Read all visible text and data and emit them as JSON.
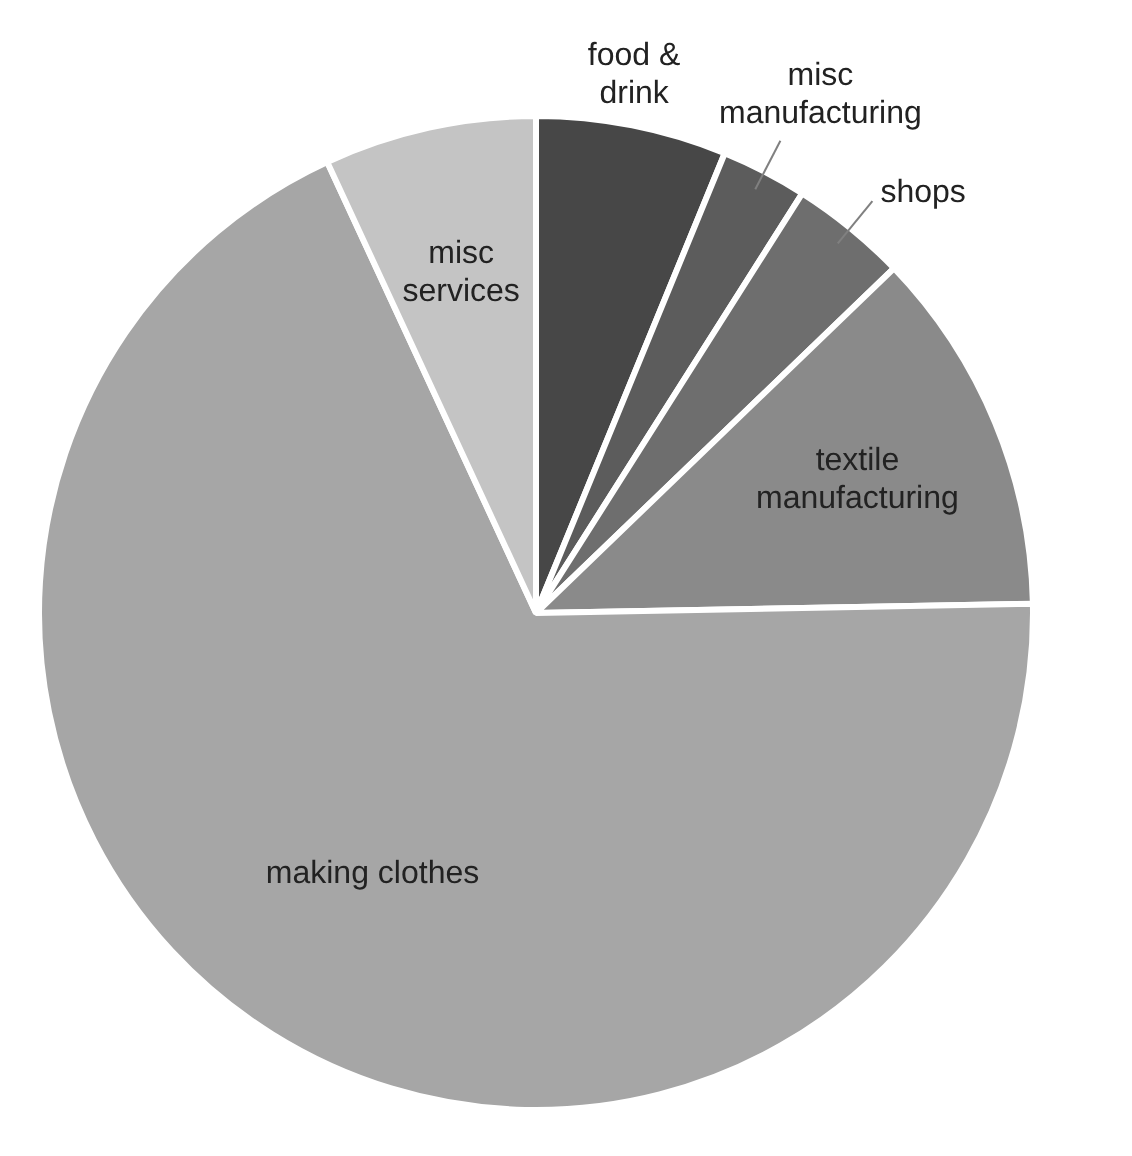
{
  "chart_data": {
    "type": "pie",
    "categories": [
      "food & drink",
      "misc manufacturing",
      "shops",
      "textile manufacturing",
      "making clothes",
      "misc services"
    ],
    "values": [
      6.2,
      2.8,
      3.8,
      11.9,
      68.4,
      6.9
    ],
    "colors": [
      "#474747",
      "#5c5c5c",
      "#6e6e6e",
      "#8a8a8a",
      "#a6a6a6",
      "#c4c4c4"
    ],
    "legend": false
  }
}
